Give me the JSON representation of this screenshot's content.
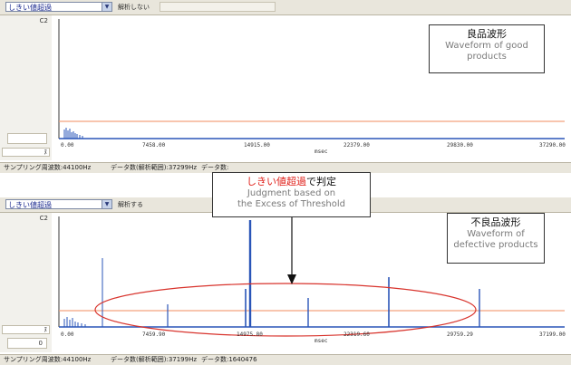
{
  "colors": {
    "waveform": "#2a55b8",
    "threshold": "#f3a27e",
    "highlight": "#d8332c",
    "callout_red": "#e0201a"
  },
  "top_panel": {
    "select_value": "しきい値超過",
    "toolbar_label": "解析しない",
    "y_max": "C2",
    "x_ticks": [
      "0.00",
      "7458.00",
      "14915.00",
      "22379.00",
      "29830.00",
      "37290.00"
    ],
    "x_unit": "msec",
    "left_arrow": "ﾇ",
    "status": {
      "sampling": "サンプリング周波数:44100Hz",
      "data1": "データ数(解析範囲):37299Hz",
      "data2": "データ数:"
    },
    "callout": {
      "title_jp": "良品波形",
      "title_en": "Waveform of good products"
    }
  },
  "bottom_panel": {
    "select_value": "しきい値超過",
    "toolbar_label": "解析する",
    "y_max": "C2",
    "y_min": "0",
    "x_ticks": [
      "0.00",
      "7459.90",
      "14975.80",
      "22319.60",
      "29759.29",
      "37199.00"
    ],
    "x_unit": "msec",
    "left_arrow": "ﾇ",
    "status": {
      "sampling": "サンプリング周波数:44100Hz",
      "data1": "データ数(解析範囲):37199Hz",
      "data2": "データ数:1640476"
    },
    "callout": {
      "title_jp": "不良品波形",
      "title_en": "Waveform of defective products"
    }
  },
  "judgment_callout": {
    "red_text": "しきい値超過",
    "black_text": "で判定",
    "en_line1": "Judgment based on",
    "en_line2": "the Excess of Threshold"
  }
}
